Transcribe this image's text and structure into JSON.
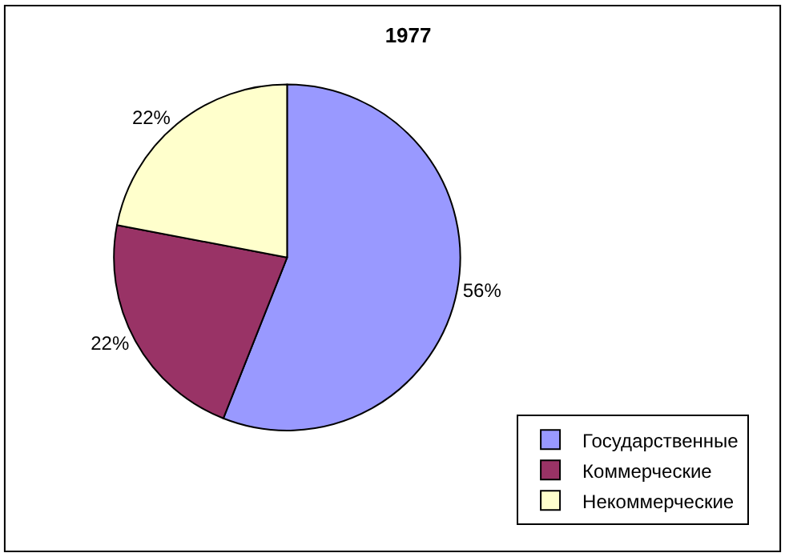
{
  "chart_data": {
    "type": "pie",
    "title": "1977",
    "categories": [
      "Государственные",
      "Коммерческие",
      "Некоммерческие"
    ],
    "values": [
      56,
      22,
      22
    ],
    "value_labels": [
      "56%",
      "22%",
      "22%"
    ],
    "colors": [
      "#9999ff",
      "#993366",
      "#ffffcc"
    ],
    "legend": "bottom right"
  }
}
